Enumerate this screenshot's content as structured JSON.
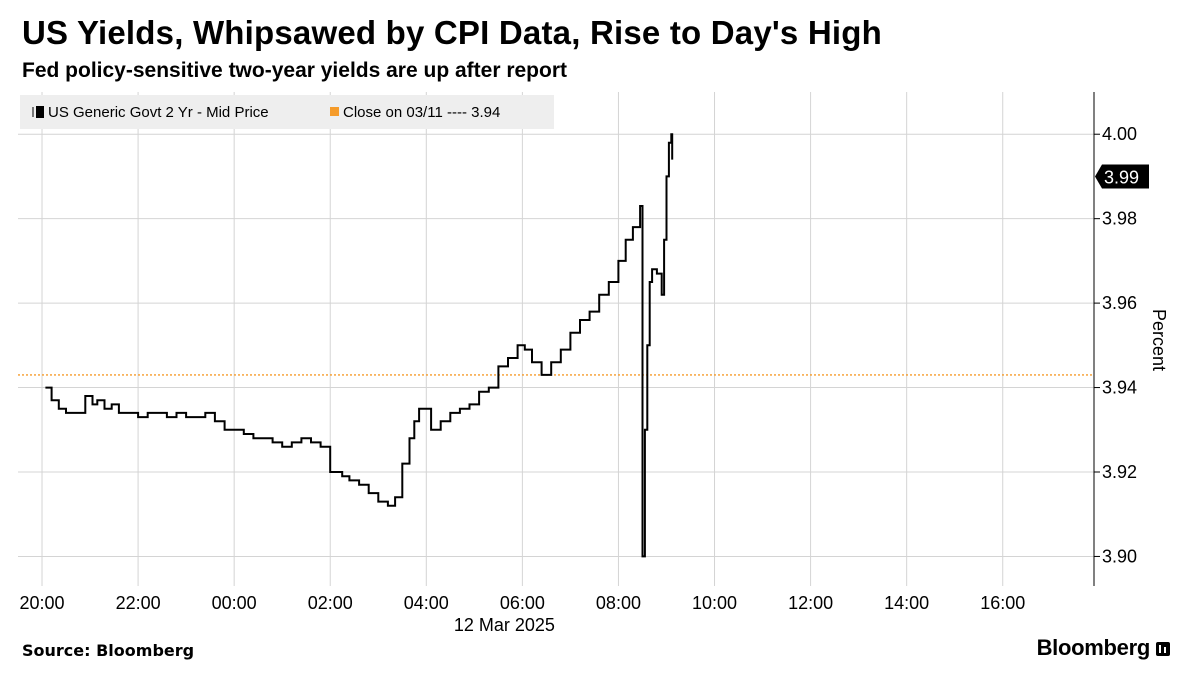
{
  "title": "US Yields, Whipsawed by CPI Data, Rise to Day's High",
  "subtitle": "Fed policy-sensitive two-year yields are up after report",
  "source": "Source: Bloomberg",
  "brand": "Bloomberg",
  "colors": {
    "series": "#000000",
    "reference": "#f59b2a",
    "grid": "#d4d4d4",
    "legend_bg": "#eeeeee"
  },
  "chart_data": {
    "type": "line",
    "title": "US Yields, Whipsawed by CPI Data, Rise to Day's High",
    "xlabel": "12 Mar 2025",
    "ylabel": "Percent",
    "ylim": [
      3.893,
      4.01
    ],
    "xlim_hours": [
      -4.5,
      17.9
    ],
    "x_ticks": [
      {
        "h": -4,
        "label": "20:00"
      },
      {
        "h": -2,
        "label": "22:00"
      },
      {
        "h": 0,
        "label": "00:00"
      },
      {
        "h": 2,
        "label": "02:00"
      },
      {
        "h": 4,
        "label": "04:00"
      },
      {
        "h": 6,
        "label": "06:00"
      },
      {
        "h": 8,
        "label": "08:00"
      },
      {
        "h": 10,
        "label": "10:00"
      },
      {
        "h": 12,
        "label": "12:00"
      },
      {
        "h": 14,
        "label": "14:00"
      },
      {
        "h": 16,
        "label": "16:00"
      }
    ],
    "y_ticks": [
      3.9,
      3.92,
      3.94,
      3.96,
      3.98,
      4.0
    ],
    "y_tick_labels": [
      "3.90",
      "3.92",
      "3.94",
      "3.96",
      "3.98",
      "4.00"
    ],
    "legend": [
      {
        "name": "US Generic Govt 2 Yr - Mid Price"
      },
      {
        "name": "Close on 03/11 ---- 3.94"
      }
    ],
    "reference_line": {
      "name": "Close on 03/11",
      "value": 3.943
    },
    "last_value": {
      "value": 3.99,
      "label": "3.99"
    },
    "series": [
      {
        "name": "US Generic Govt 2 Yr - Mid Price",
        "x_hours": [
          -3.93,
          -3.8,
          -3.65,
          -3.5,
          -3.3,
          -3.1,
          -2.95,
          -2.85,
          -2.7,
          -2.55,
          -2.4,
          -2.2,
          -2.0,
          -1.8,
          -1.6,
          -1.4,
          -1.2,
          -1.0,
          -0.8,
          -0.6,
          -0.4,
          -0.2,
          0.0,
          0.2,
          0.4,
          0.6,
          0.8,
          1.0,
          1.2,
          1.4,
          1.6,
          1.8,
          2.0,
          2.1,
          2.25,
          2.4,
          2.6,
          2.8,
          3.0,
          3.2,
          3.35,
          3.5,
          3.65,
          3.75,
          3.85,
          3.95,
          4.1,
          4.3,
          4.5,
          4.7,
          4.9,
          5.1,
          5.3,
          5.5,
          5.7,
          5.9,
          6.05,
          6.2,
          6.4,
          6.6,
          6.8,
          7.0,
          7.2,
          7.4,
          7.6,
          7.8,
          8.0,
          8.15,
          8.3,
          8.45,
          8.5,
          8.55,
          8.6,
          8.65,
          8.7,
          8.8,
          8.9,
          8.95,
          9.0,
          9.05,
          9.1,
          9.12
        ],
        "values": [
          3.94,
          3.937,
          3.935,
          3.934,
          3.934,
          3.938,
          3.936,
          3.937,
          3.935,
          3.936,
          3.934,
          3.934,
          3.933,
          3.934,
          3.934,
          3.933,
          3.934,
          3.933,
          3.933,
          3.934,
          3.932,
          3.93,
          3.93,
          3.929,
          3.928,
          3.928,
          3.927,
          3.926,
          3.927,
          3.928,
          3.927,
          3.926,
          3.92,
          3.92,
          3.919,
          3.918,
          3.917,
          3.915,
          3.913,
          3.912,
          3.914,
          3.922,
          3.928,
          3.932,
          3.935,
          3.935,
          3.93,
          3.932,
          3.934,
          3.935,
          3.936,
          3.939,
          3.94,
          3.945,
          3.947,
          3.95,
          3.949,
          3.946,
          3.943,
          3.946,
          3.949,
          3.953,
          3.956,
          3.958,
          3.962,
          3.965,
          3.97,
          3.975,
          3.978,
          3.983,
          3.9,
          3.93,
          3.95,
          3.965,
          3.968,
          3.967,
          3.962,
          3.975,
          3.99,
          3.998,
          4.0,
          3.994
        ]
      }
    ]
  }
}
